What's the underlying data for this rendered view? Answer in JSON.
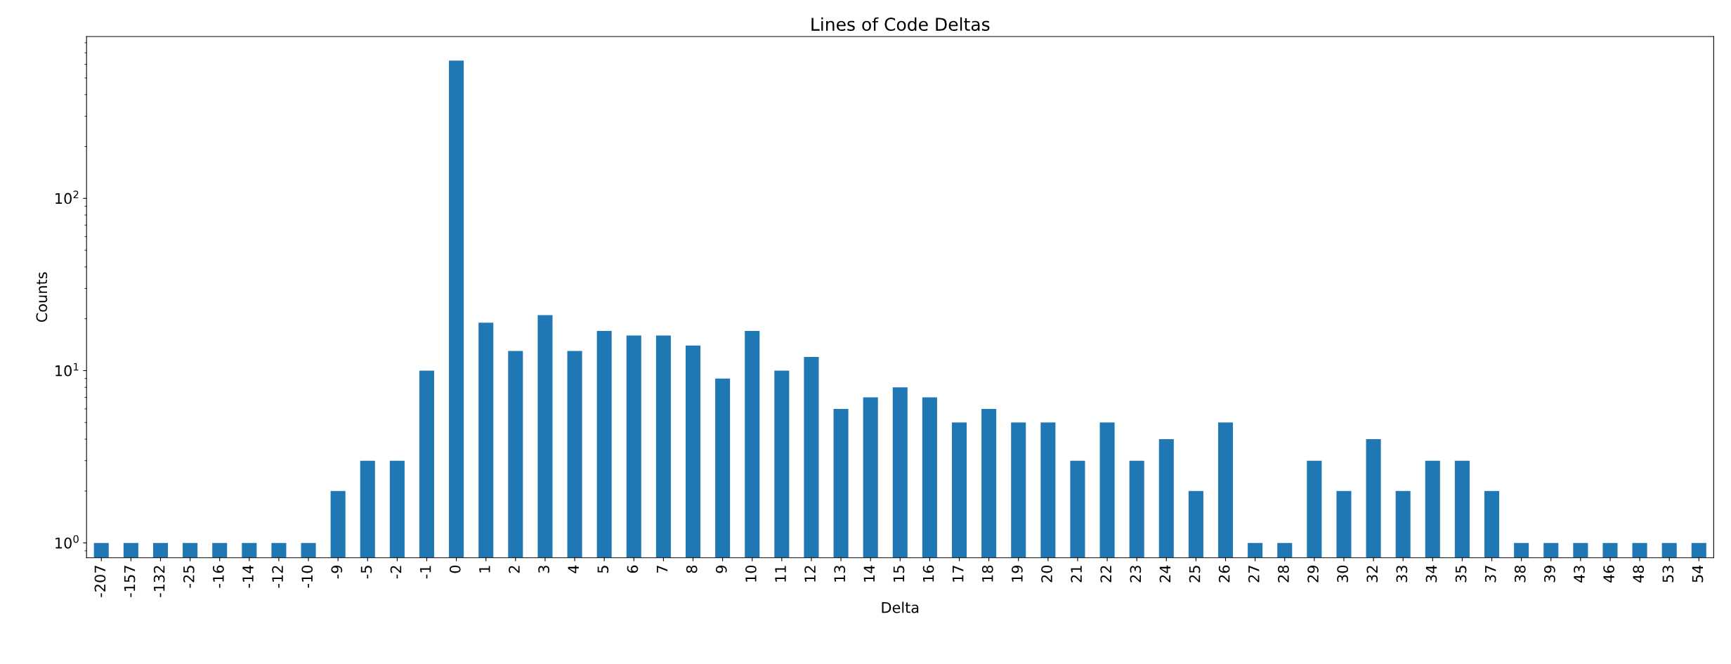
{
  "chart_data": {
    "type": "bar",
    "title": "Lines of Code Deltas",
    "xlabel": "Delta",
    "ylabel": "Counts",
    "categories": [
      "-207",
      "-157",
      "-132",
      "-25",
      "-16",
      "-14",
      "-12",
      "-10",
      "-9",
      "-5",
      "-2",
      "-1",
      "0",
      "1",
      "2",
      "3",
      "4",
      "5",
      "6",
      "7",
      "8",
      "9",
      "10",
      "11",
      "12",
      "13",
      "14",
      "15",
      "16",
      "17",
      "18",
      "19",
      "20",
      "21",
      "22",
      "23",
      "24",
      "25",
      "26",
      "27",
      "28",
      "29",
      "30",
      "32",
      "33",
      "34",
      "35",
      "37",
      "38",
      "39",
      "43",
      "46",
      "48",
      "53",
      "54"
    ],
    "values": [
      1,
      1,
      1,
      1,
      1,
      1,
      1,
      1,
      2,
      3,
      3,
      10,
      630,
      19,
      13,
      21,
      13,
      17,
      16,
      16,
      14,
      9,
      17,
      10,
      12,
      6,
      7,
      8,
      7,
      5,
      6,
      5,
      5,
      3,
      5,
      3,
      4,
      2,
      5,
      1,
      1,
      3,
      2,
      4,
      2,
      3,
      3,
      2,
      1,
      1,
      1,
      1,
      1,
      1,
      1
    ],
    "color": "#1f77b4",
    "log": "y",
    "ylim": [
      0.82,
      870
    ],
    "yticks": [
      {
        "value": 1,
        "label": "10$^{0}$"
      },
      {
        "value": 10,
        "label": "10$^{1}$"
      },
      {
        "value": 100,
        "label": "10$^{2}$"
      }
    ],
    "grid": false,
    "legend": false
  }
}
